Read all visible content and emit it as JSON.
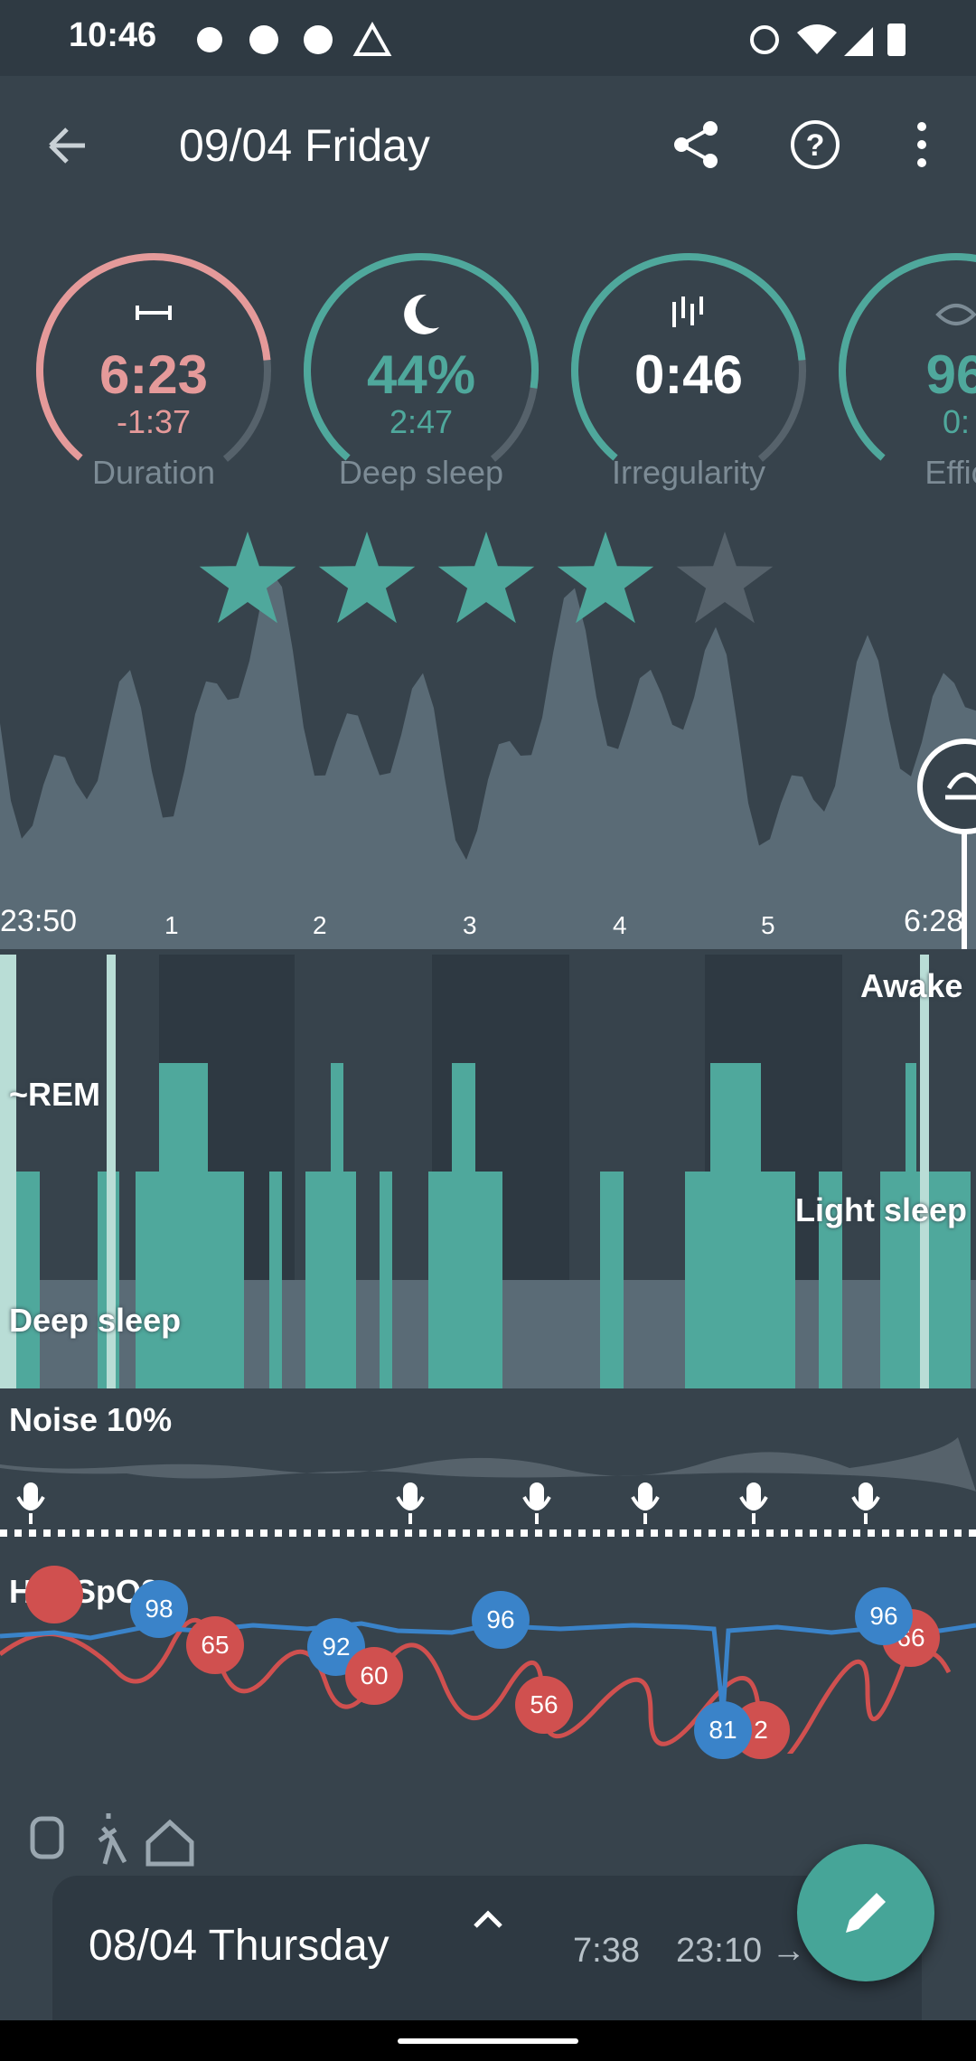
{
  "status_bar": {
    "time": "10:46",
    "left_icons": [
      "chat-bubble-icon",
      "badge-icon",
      "r-badge-icon",
      "warning-triangle-icon"
    ],
    "right_icons": [
      "alarm-icon",
      "wifi-icon",
      "signal-icon",
      "battery-icon"
    ]
  },
  "app_bar": {
    "title": "09/04 Friday",
    "icons": [
      "back-arrow-icon",
      "share-icon",
      "help-icon",
      "more-vert-icon"
    ]
  },
  "gauges": [
    {
      "label": "Duration",
      "value": "6:23",
      "sub": "-1:37",
      "icon": "duration-icon",
      "color": "#e59a9a",
      "fraction": 0.8
    },
    {
      "label": "Deep sleep",
      "value": "44%",
      "sub": "2:47",
      "icon": "moon-icon",
      "color": "#4fa89c",
      "fraction": 0.85
    },
    {
      "label": "Irregularity",
      "value": "0:46",
      "sub": "",
      "icon": "bars-icon",
      "color": "#4fa89c",
      "fraction": 0.8
    },
    {
      "label": "Effic",
      "value": "96",
      "sub": "0:",
      "icon": "eye-icon",
      "color": "#4fa89c",
      "fraction": 0.9
    }
  ],
  "rating": {
    "stars": 4.25,
    "max": 5
  },
  "colors": {
    "background": "#37434c",
    "teal": "#4fa89c",
    "salmon": "#e59a9a",
    "blue": "#3a83c9",
    "red": "#d0504f",
    "fab": "#46a598"
  },
  "timeline": {
    "start": "23:50",
    "hours": [
      "1",
      "2",
      "3",
      "4",
      "5"
    ],
    "end": "6:28"
  },
  "hypnogram": {
    "awake_label": "Awake",
    "rem_label": "~REM",
    "light_label": "Light sleep",
    "deep_label": "Deep sleep"
  },
  "noise": {
    "label": "Noise 10%"
  },
  "hr": {
    "label": "HR, SpO2",
    "spo2_bubbles": [
      "98",
      "92",
      "96",
      "81",
      "96"
    ],
    "hr_bubbles": [
      "65",
      "60",
      "56",
      "2",
      "66"
    ]
  },
  "footer_icons": [
    "watch-icon",
    "walk-icon",
    "home-icon"
  ],
  "previous_record": {
    "title": "08/04 Thursday",
    "duration": "7:38",
    "range": "23:10 →",
    "expand_icon": "chevron-up-icon"
  },
  "fab": {
    "icon": "pencil-icon"
  }
}
